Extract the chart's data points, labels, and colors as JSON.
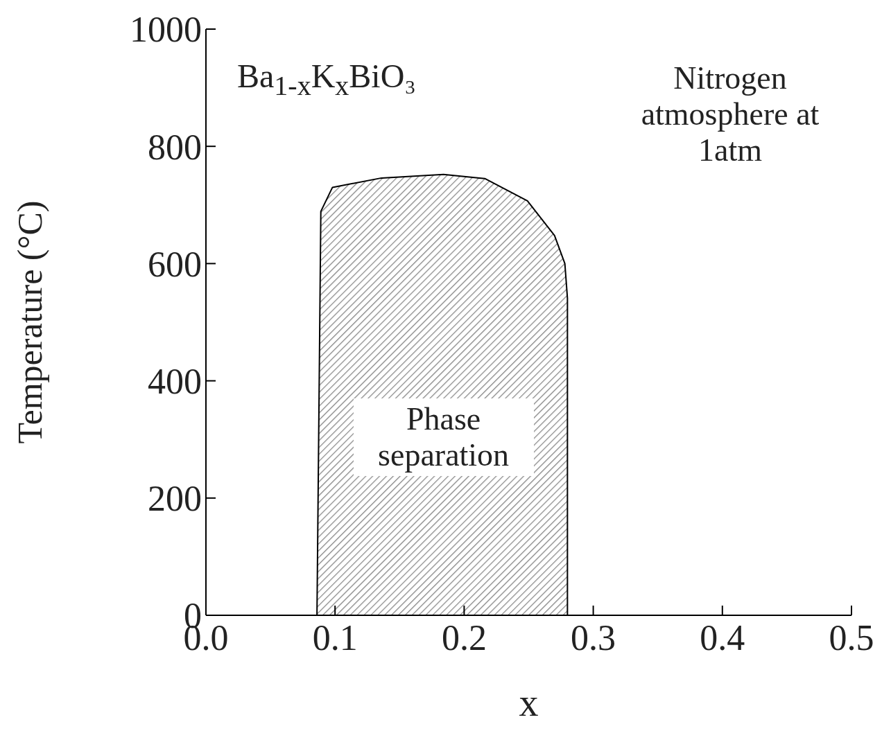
{
  "chart_data": {
    "type": "area",
    "title": "Ba$_{1-x}$K$_{x}$BiO₃",
    "xlabel": "x",
    "ylabel": "Temperature (°C)",
    "x": [
      0.086,
      0.089,
      0.098,
      0.136,
      0.184,
      0.216,
      0.249,
      0.27,
      0.278,
      0.28,
      0.28
    ],
    "values": [
      0,
      689,
      730,
      746,
      752,
      745,
      707,
      648,
      600,
      541,
      0
    ],
    "color": "#333333",
    "xlim": [
      0,
      0.5
    ],
    "xticks": [
      {
        "value": 0,
        "label": "0.0"
      },
      0.1,
      0.2,
      0.3,
      0.4,
      0.5
    ],
    "ylim": [
      0,
      1000
    ],
    "yticks": [
      0,
      200,
      400,
      600,
      800,
      1000
    ],
    "annotations": [
      "Nitrogen atmosphere at 1atm",
      "Phase separation"
    ]
  }
}
